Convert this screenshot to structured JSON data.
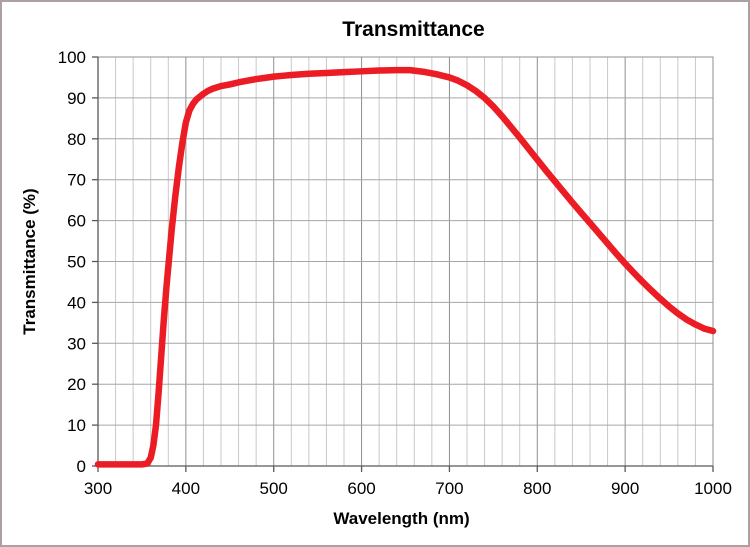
{
  "page": {
    "background": "#ffffff",
    "border_color": "#aba1a1"
  },
  "chart_data": {
    "type": "line",
    "title": "Transmittance",
    "xlabel": "Wavelength (nm)",
    "ylabel": "Transmittance (%)",
    "xlim": [
      300,
      1000
    ],
    "ylim": [
      0,
      100
    ],
    "x_major_step": 100,
    "x_minor_step": 20,
    "y_major_step": 10,
    "x_tick_labels": [
      "300",
      "400",
      "500",
      "600",
      "700",
      "800",
      "900",
      "1000"
    ],
    "y_tick_labels": [
      "0",
      "10",
      "20",
      "30",
      "40",
      "50",
      "60",
      "70",
      "80",
      "90",
      "100"
    ],
    "grid": {
      "minor_color": "#c9c9c9",
      "major_color": "#8f8f8f",
      "horizontal_color": "#a6a6a6",
      "border_color": "#8f8f8f"
    },
    "axis_color": "#595959",
    "legend": "none",
    "series": [
      {
        "name": "Transmittance",
        "color": "#ec1c24",
        "stroke_width": 6.5,
        "x": [
          300,
          310,
          320,
          330,
          340,
          350,
          356,
          360,
          363,
          366,
          369,
          372,
          375,
          378,
          381,
          384,
          388,
          392,
          396,
          400,
          404,
          408,
          412,
          416,
          420,
          425,
          430,
          440,
          450,
          460,
          470,
          480,
          490,
          500,
          510,
          520,
          540,
          560,
          580,
          600,
          620,
          640,
          655,
          670,
          685,
          700,
          710,
          720,
          730,
          740,
          750,
          760,
          770,
          780,
          790,
          800,
          810,
          820,
          830,
          840,
          850,
          860,
          870,
          880,
          890,
          900,
          910,
          920,
          930,
          940,
          950,
          960,
          970,
          980,
          990,
          1000
        ],
        "y": [
          0.4,
          0.4,
          0.4,
          0.4,
          0.4,
          0.4,
          0.6,
          2,
          5,
          10,
          18,
          27,
          36,
          44,
          51,
          58,
          66,
          73,
          79,
          84,
          86.9,
          88.5,
          89.6,
          90.3,
          91,
          91.7,
          92.2,
          92.9,
          93.3,
          93.8,
          94.2,
          94.6,
          94.9,
          95.2,
          95.4,
          95.6,
          95.9,
          96.1,
          96.3,
          96.5,
          96.7,
          96.8,
          96.8,
          96.4,
          95.8,
          95,
          94.2,
          93.1,
          91.7,
          90,
          87.9,
          85.5,
          82.9,
          80.3,
          77.6,
          74.9,
          72.2,
          69.6,
          67,
          64.4,
          61.9,
          59.4,
          56.9,
          54.4,
          51.9,
          49.5,
          47.2,
          45,
          42.9,
          40.9,
          39,
          37.3,
          35.8,
          34.6,
          33.6,
          33
        ]
      }
    ]
  }
}
